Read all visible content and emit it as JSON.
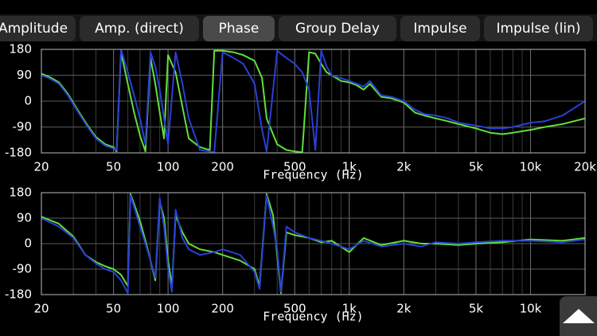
{
  "tabs": [
    {
      "label": "Amplitude"
    },
    {
      "label": "Amp. (direct)"
    },
    {
      "label": "Phase",
      "selected": true
    },
    {
      "label": "Group Delay"
    },
    {
      "label": "Impulse"
    },
    {
      "label": "Impulse (lin)"
    }
  ],
  "chart_data": [
    {
      "type": "line",
      "xscale": "log",
      "grid": true,
      "xlabel": "Frequency (Hz)",
      "xlim": [
        20,
        20000
      ],
      "ylim": [
        -180,
        180
      ],
      "xticks": [
        20,
        50,
        100,
        200,
        500,
        {
          "value": 1000,
          "label": "1k"
        },
        {
          "value": 2000,
          "label": "2k"
        },
        {
          "value": 5000,
          "label": "5k"
        },
        {
          "value": 10000,
          "label": "10k"
        },
        {
          "value": 20000,
          "label": "20k"
        }
      ],
      "yticks": [
        -180,
        -90,
        0,
        90,
        180
      ],
      "x": [
        20,
        22,
        25,
        28,
        32,
        36,
        40,
        45,
        50,
        52,
        55,
        60,
        65,
        70,
        75,
        80,
        85,
        90,
        95,
        100,
        110,
        120,
        130,
        150,
        170,
        180,
        200,
        230,
        260,
        300,
        330,
        350,
        400,
        450,
        500,
        550,
        600,
        650,
        700,
        750,
        800,
        900,
        1000,
        1100,
        1200,
        1300,
        1500,
        1700,
        2000,
        2300,
        2600,
        3000,
        3500,
        4000,
        5000,
        6000,
        7000,
        8000,
        10000,
        12000,
        15000,
        20000
      ],
      "series": [
        {
          "color": "#5fe03a",
          "values": [
            95,
            85,
            65,
            25,
            -35,
            -85,
            -125,
            -150,
            -160,
            -175,
            170,
            60,
            -40,
            -120,
            -175,
            150,
            60,
            -40,
            -130,
            160,
            100,
            -20,
            -130,
            -160,
            -170,
            175,
            175,
            170,
            160,
            140,
            80,
            -60,
            -150,
            -170,
            -175,
            -178,
            170,
            165,
            130,
            100,
            90,
            70,
            65,
            55,
            40,
            60,
            15,
            10,
            -5,
            -40,
            -50,
            -60,
            -70,
            -80,
            -95,
            -110,
            -115,
            -110,
            -100,
            -90,
            -80,
            -60
          ]
        },
        {
          "color": "#2a3fd6",
          "values": [
            90,
            80,
            60,
            20,
            -40,
            -90,
            -130,
            -155,
            -165,
            -170,
            180,
            100,
            20,
            -60,
            -150,
            170,
            120,
            40,
            -60,
            -150,
            170,
            60,
            -60,
            -170,
            -175,
            -178,
            170,
            150,
            130,
            60,
            -100,
            -175,
            175,
            150,
            130,
            100,
            40,
            -170,
            175,
            120,
            90,
            80,
            70,
            60,
            50,
            70,
            20,
            15,
            0,
            -30,
            -45,
            -50,
            -60,
            -75,
            -85,
            -95,
            -95,
            -90,
            -75,
            -70,
            -50,
            0
          ]
        }
      ]
    },
    {
      "type": "line",
      "xscale": "log",
      "grid": true,
      "xlabel": "Frequency (Hz)",
      "xlim": [
        20,
        20000
      ],
      "ylim": [
        -180,
        180
      ],
      "xticks": [
        20,
        50,
        100,
        200,
        500,
        {
          "value": 1000,
          "label": "1k"
        },
        {
          "value": 2000,
          "label": "2k"
        },
        {
          "value": 5000,
          "label": "5k"
        },
        {
          "value": 10000,
          "label": "10k"
        },
        {
          "value": 20000,
          "label": "20k"
        }
      ],
      "yticks": [
        -180,
        -90,
        0,
        90,
        180
      ],
      "x": [
        20,
        25,
        30,
        35,
        40,
        45,
        50,
        55,
        60,
        62,
        65,
        70,
        75,
        80,
        85,
        90,
        95,
        100,
        105,
        110,
        120,
        130,
        150,
        180,
        200,
        250,
        300,
        320,
        350,
        380,
        400,
        420,
        450,
        500,
        600,
        700,
        800,
        1000,
        1200,
        1500,
        2000,
        2500,
        3000,
        4000,
        5000,
        7000,
        10000,
        15000,
        20000
      ],
      "series": [
        {
          "color": "#5fe03a",
          "values": [
            95,
            70,
            25,
            -40,
            -65,
            -80,
            -90,
            -110,
            -150,
            175,
            140,
            80,
            10,
            -60,
            -130,
            150,
            90,
            -60,
            -150,
            100,
            40,
            0,
            -20,
            -30,
            -40,
            -60,
            -90,
            -150,
            175,
            100,
            -40,
            -175,
            40,
            30,
            20,
            5,
            10,
            -30,
            20,
            -5,
            10,
            0,
            0,
            -5,
            0,
            5,
            15,
            10,
            20
          ]
        },
        {
          "color": "#2a3fd6",
          "values": [
            90,
            60,
            20,
            -40,
            -70,
            -90,
            -100,
            -130,
            -175,
            170,
            130,
            60,
            0,
            -60,
            -120,
            160,
            60,
            -90,
            -170,
            120,
            20,
            -20,
            -40,
            -30,
            -20,
            -40,
            -100,
            -160,
            170,
            60,
            -20,
            -170,
            60,
            40,
            20,
            10,
            0,
            -20,
            10,
            -10,
            0,
            -10,
            5,
            0,
            5,
            10,
            10,
            5,
            15
          ]
        }
      ]
    }
  ]
}
